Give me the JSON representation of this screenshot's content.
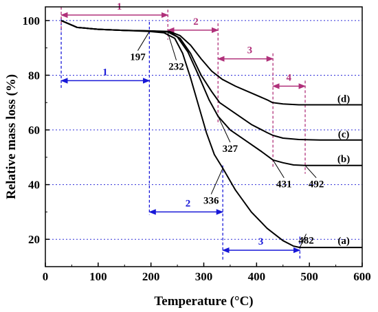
{
  "chart_data": {
    "type": "line",
    "xlabel": "Temperature (°C)",
    "ylabel": "Relative mass loss (%)",
    "xlim": [
      0,
      600
    ],
    "ylim": [
      10,
      105
    ],
    "x_ticks": [
      0,
      100,
      200,
      300,
      400,
      500,
      600
    ],
    "y_ticks": [
      20,
      40,
      60,
      80,
      100
    ],
    "grid": "horizontal dotted blue at 20, 40, 60, 80, 100",
    "series": [
      {
        "name": "(a)",
        "x": [
          30,
          60,
          100,
          150,
          197,
          225,
          245,
          260,
          275,
          290,
          305,
          320,
          336,
          360,
          390,
          420,
          450,
          470,
          482,
          500,
          550,
          600
        ],
        "y": [
          100,
          97.5,
          96.8,
          96.4,
          96.0,
          95.5,
          93.5,
          88,
          79,
          69,
          59,
          51,
          46,
          38,
          30,
          24,
          19.5,
          17.5,
          17,
          17,
          17,
          17
        ]
      },
      {
        "name": "(b)",
        "x": [
          30,
          60,
          100,
          150,
          200,
          232,
          250,
          270,
          290,
          310,
          327,
          350,
          380,
          410,
          431,
          450,
          470,
          492,
          520,
          600
        ],
        "y": [
          100,
          97.5,
          96.8,
          96.4,
          96.2,
          95.8,
          94,
          88.5,
          80,
          71,
          65,
          60,
          56,
          52,
          49,
          48,
          47.2,
          47,
          47,
          47
        ]
      },
      {
        "name": "(c)",
        "x": [
          30,
          60,
          100,
          150,
          200,
          235,
          255,
          275,
          295,
          315,
          330,
          360,
          390,
          420,
          431,
          450,
          480,
          520,
          600
        ],
        "y": [
          100,
          97.5,
          96.8,
          96.4,
          96.2,
          95.8,
          93.5,
          88,
          80,
          74,
          70,
          66,
          62,
          59,
          58,
          57,
          56.5,
          56.3,
          56.3
        ]
      },
      {
        "name": "(d)",
        "x": [
          30,
          60,
          100,
          150,
          200,
          235,
          255,
          275,
          295,
          315,
          335,
          360,
          390,
          420,
          430,
          450,
          480,
          520,
          600
        ],
        "y": [
          100,
          97.5,
          96.8,
          96.4,
          96.2,
          96.0,
          94.5,
          91,
          86,
          81.5,
          78.5,
          76,
          73.5,
          71,
          70,
          69.5,
          69.2,
          69.2,
          69.2
        ]
      }
    ],
    "annotations": [
      {
        "text": "197",
        "x": 197,
        "y": 96,
        "lx": 175,
        "ly": 90
      },
      {
        "text": "232",
        "x": 232,
        "y": 95.5,
        "lx": 248,
        "ly": 86.5
      },
      {
        "text": "327",
        "x": 327,
        "y": 65,
        "lx": 350,
        "ly": 56.5
      },
      {
        "text": "336",
        "x": 336,
        "y": 46,
        "lx": 314,
        "ly": 37.5
      },
      {
        "text": "431",
        "x": 431,
        "y": 49,
        "lx": 452,
        "ly": 43.5
      },
      {
        "text": "492",
        "x": 492,
        "y": 47,
        "lx": 513,
        "ly": 43.5
      },
      {
        "text": "482",
        "x": 482,
        "y": 17,
        "lx": 494,
        "ly": 23
      }
    ],
    "stage_markers": [
      {
        "color": "#b0307a",
        "label": "1",
        "x1": 30,
        "x2": 232,
        "y": 102,
        "label_x": 140,
        "label_y": 104
      },
      {
        "color": "#b0307a",
        "label": "2",
        "x1": 232,
        "x2": 327,
        "y": 96.5,
        "label_x": 285,
        "label_y": 98.5
      },
      {
        "color": "#b0307a",
        "label": "3",
        "x1": 327,
        "x2": 431,
        "y": 86,
        "label_x": 387,
        "label_y": 88
      },
      {
        "color": "#b0307a",
        "label": "4",
        "x1": 431,
        "x2": 492,
        "y": 76,
        "label_x": 461,
        "label_y": 78
      },
      {
        "color": "#1818d8",
        "label": "1",
        "x1": 30,
        "x2": 197,
        "y": 78,
        "label_x": 113,
        "label_y": 80
      },
      {
        "color": "#1818d8",
        "label": "2",
        "x1": 197,
        "x2": 336,
        "y": 30,
        "label_x": 270,
        "label_y": 32
      },
      {
        "color": "#1818d8",
        "label": "3",
        "x1": 336,
        "x2": 482,
        "y": 16,
        "label_x": 408,
        "label_y": 18
      }
    ],
    "stage_verticals": [
      {
        "color": "#1818d8",
        "x": 30,
        "y1": 101,
        "y2": 75
      },
      {
        "color": "#1818d8",
        "x": 197,
        "y1": 99.5,
        "y2": 29
      },
      {
        "color": "#1818d8",
        "x": 336,
        "y1": 47,
        "y2": 12
      },
      {
        "color": "#1818d8",
        "x": 482,
        "y1": 21,
        "y2": 13
      },
      {
        "color": "#b0307a",
        "x": 30,
        "y1": 105,
        "y2": 96
      },
      {
        "color": "#b0307a",
        "x": 232,
        "y1": 104,
        "y2": 93
      },
      {
        "color": "#b0307a",
        "x": 327,
        "y1": 99,
        "y2": 62
      },
      {
        "color": "#b0307a",
        "x": 431,
        "y1": 88,
        "y2": 46
      },
      {
        "color": "#b0307a",
        "x": 492,
        "y1": 78,
        "y2": 44
      }
    ],
    "curve_labels": [
      {
        "text": "(d)",
        "x": 565,
        "y": 71.5
      },
      {
        "text": "(c)",
        "x": 565,
        "y": 58.5
      },
      {
        "text": "(b)",
        "x": 565,
        "y": 49.5
      },
      {
        "text": "(a)",
        "x": 565,
        "y": 19.5
      }
    ]
  }
}
